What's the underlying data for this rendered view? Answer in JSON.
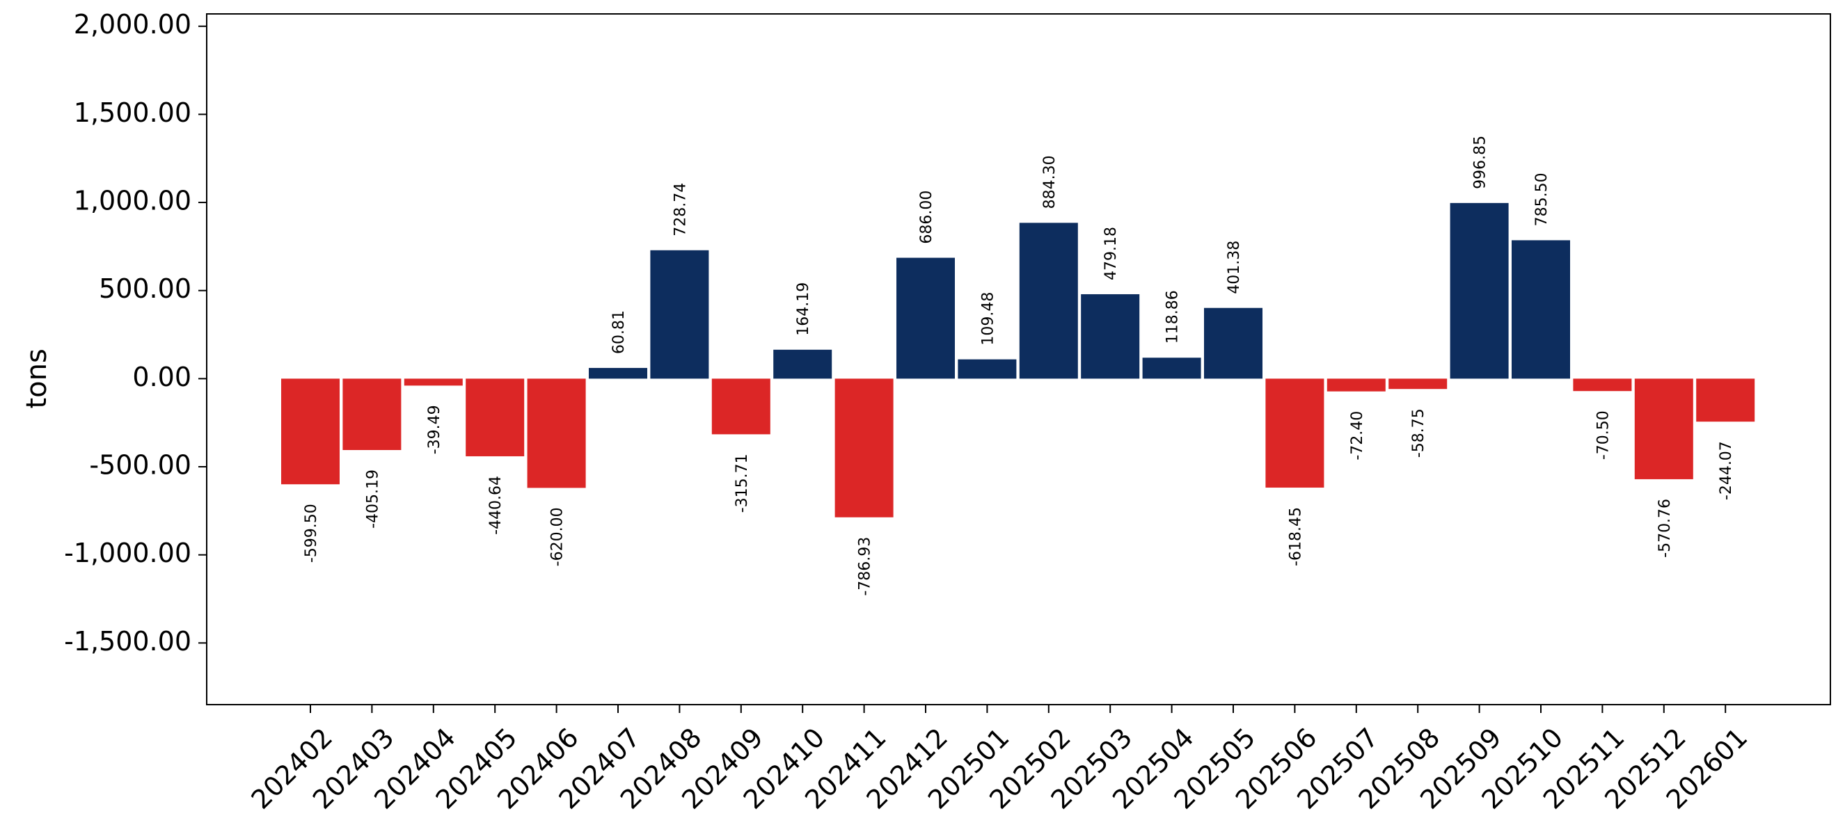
{
  "chart_data": {
    "type": "bar",
    "title": "",
    "xlabel": "",
    "ylabel": "tons",
    "ylim": [
      -1850,
      2070
    ],
    "yticks": [
      -1500,
      -1000,
      -500,
      0,
      500,
      1000,
      1500,
      2000
    ],
    "ytick_labels": [
      "-1,500.00",
      "-1,000.00",
      "-500.00",
      "0.00",
      "500.00",
      "1,000.00",
      "1,500.00",
      "2,000.00"
    ],
    "grid": false,
    "colors": {
      "positive": "#0d2d5e",
      "negative": "#dc2626"
    },
    "categories": [
      "202402",
      "202403",
      "202404",
      "202405",
      "202406",
      "202407",
      "202408",
      "202409",
      "202410",
      "202411",
      "202412",
      "202501",
      "202502",
      "202503",
      "202504",
      "202505",
      "202506",
      "202507",
      "202508",
      "202509",
      "202510",
      "202511",
      "202512",
      "202601"
    ],
    "values": [
      -599.5,
      -405.19,
      -39.49,
      -440.64,
      -620.0,
      60.81,
      728.74,
      -315.71,
      164.19,
      -786.93,
      686.0,
      109.48,
      884.3,
      479.18,
      118.86,
      401.38,
      -618.45,
      -72.4,
      -58.75,
      996.85,
      785.5,
      -70.5,
      -570.76,
      -244.07
    ],
    "value_labels": [
      "-599.50",
      "-405.19",
      "-39.49",
      "-440.64",
      "-620.00",
      "60.81",
      "728.74",
      "-315.71",
      "164.19",
      "-786.93",
      "686.00",
      "109.48",
      "884.30",
      "479.18",
      "118.86",
      "401.38",
      "-618.45",
      "-72.40",
      "-58.75",
      "996.85",
      "785.50",
      "-70.50",
      "-570.76",
      "-244.07"
    ]
  }
}
